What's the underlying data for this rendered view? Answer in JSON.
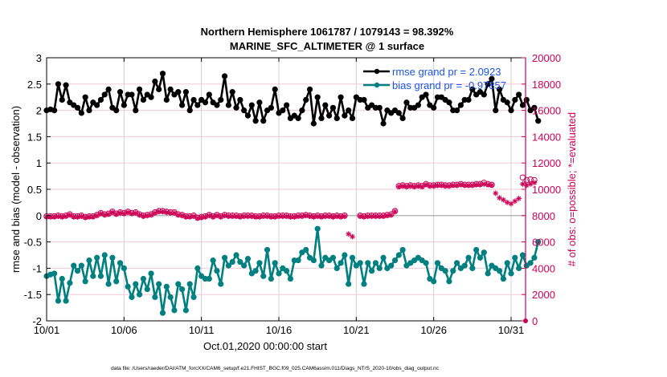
{
  "chart_data": {
    "type": "line",
    "title": "Northern Hemisphere 1061787 / 1079143 = 98.392%",
    "subtitle": "MARINE_SFC_ALTIMETER @ 1 surface",
    "xlabel": "Oct.01,2020 00:00:00 start",
    "ylabel": "rmse and bias (model - observation)",
    "y2label": "# of obs: o=possible; *=evaluated",
    "ylim": [
      -2,
      3
    ],
    "y2lim": [
      0,
      20000
    ],
    "xlim_days": [
      0,
      31.5
    ],
    "grid": true,
    "legend_position": "top-right",
    "x_tick_labels": [
      "10/01",
      "10/06",
      "10/11",
      "10/16",
      "10/21",
      "10/26",
      "10/31"
    ],
    "x_tick_days": [
      0,
      5,
      10,
      15,
      20,
      25,
      30
    ],
    "y_tick_labels": [
      "-2",
      "-1.5",
      "-1",
      "-0.5",
      "0",
      "0.5",
      "1",
      "1.5",
      "2",
      "2.5",
      "3"
    ],
    "y_ticks": [
      -2,
      -1.5,
      -1,
      -0.5,
      0,
      0.5,
      1,
      1.5,
      2,
      2.5,
      3
    ],
    "y2_tick_labels": [
      "0",
      "2000",
      "4000",
      "6000",
      "8000",
      "10000",
      "12000",
      "14000",
      "16000",
      "18000",
      "20000"
    ],
    "y2_ticks": [
      0,
      2000,
      4000,
      6000,
      8000,
      10000,
      12000,
      14000,
      16000,
      18000,
      20000
    ],
    "x_step_days": 0.25,
    "series": [
      {
        "name": "rmse grand pr = 2.0923",
        "color": "#000000",
        "axis": "left",
        "values": [
          2.0,
          2.02,
          2.0,
          2.5,
          2.2,
          2.48,
          2.15,
          2.1,
          2.05,
          1.95,
          2.25,
          2.0,
          2.15,
          2.1,
          2.2,
          2.3,
          2.4,
          2.05,
          2.0,
          2.35,
          2.1,
          2.3,
          2.3,
          2.0,
          2.4,
          2.2,
          2.3,
          2.25,
          2.55,
          2.4,
          2.7,
          2.2,
          2.4,
          2.3,
          2.35,
          2.1,
          2.35,
          2.0,
          2.2,
          2.1,
          2.2,
          2.15,
          2.3,
          2.15,
          2.1,
          2.2,
          2.65,
          2.1,
          2.35,
          2.05,
          2.2,
          2.0,
          1.9,
          2.1,
          1.8,
          2.15,
          1.8,
          2.0,
          2.05,
          2.4,
          1.95,
          2.0,
          2.1,
          1.85,
          1.9,
          1.85,
          2.0,
          2.2,
          2.4,
          1.75,
          2.25,
          1.85,
          2.1,
          1.9,
          2.05,
          1.85,
          2.25,
          1.9,
          2.0,
          1.85,
          2.25,
          2.2,
          2.2,
          2.05,
          2.1,
          2.05,
          2.05,
          1.75,
          2.0,
          1.95,
          2.0,
          1.95,
          1.85,
          2.15,
          2.05,
          2.05,
          2.1,
          2.25,
          2.3,
          2.1,
          2.05,
          2.25,
          2.25,
          2.2,
          2.15,
          2.0,
          2.0,
          2.1,
          2.2,
          2.2,
          2.4,
          2.3,
          2.35,
          2.3,
          2.5,
          2.6,
          2.0,
          2.4,
          2.2,
          2.15,
          2.0,
          2.2,
          2.3,
          2.1,
          2.2,
          2.0,
          2.05,
          1.8
        ]
      },
      {
        "name": "bias grand pr = -0.97857",
        "color": "#008080",
        "axis": "left",
        "values": [
          -1.15,
          -1.12,
          -1.1,
          -1.62,
          -1.2,
          -1.62,
          -1.28,
          -0.95,
          -1.05,
          -0.95,
          -1.25,
          -0.85,
          -1.15,
          -0.8,
          -1.15,
          -0.75,
          -1.3,
          -0.8,
          -1.25,
          -0.9,
          -1.0,
          -1.35,
          -1.55,
          -1.3,
          -1.5,
          -1.2,
          -1.4,
          -1.1,
          -1.55,
          -1.3,
          -1.85,
          -1.35,
          -1.55,
          -1.8,
          -1.3,
          -1.4,
          -1.8,
          -1.3,
          -1.55,
          -1.0,
          -1.15,
          -1.2,
          -1.2,
          -0.85,
          -1.05,
          -1.3,
          -0.8,
          -0.95,
          -0.88,
          -0.75,
          -0.88,
          -0.95,
          -0.82,
          -1.1,
          -1.05,
          -0.9,
          -1.15,
          -0.65,
          -1.2,
          -0.9,
          -1.1,
          -1.0,
          -1.05,
          -1.2,
          -0.85,
          -0.85,
          -0.7,
          -0.65,
          -0.8,
          -0.85,
          -0.25,
          -0.95,
          -0.8,
          -0.85,
          -0.8,
          -1.0,
          -0.9,
          -0.75,
          -1.3,
          -0.8,
          -0.95,
          -0.9,
          -1.3,
          -0.9,
          -1.05,
          -0.9,
          -1.0,
          -0.8,
          -1.0,
          -0.95,
          -0.85,
          -0.75,
          -0.65,
          -0.95,
          -0.9,
          -0.85,
          -0.8,
          -0.85,
          -0.9,
          -1.2,
          -1.25,
          -0.9,
          -1.0,
          -1.05,
          -1.25,
          -1.05,
          -0.9,
          -1.0,
          -0.95,
          -0.8,
          -1.0,
          -0.65,
          -0.8,
          -0.7,
          -1.1,
          -0.95,
          -1.0,
          -1.05,
          -1.2,
          -0.9,
          -1.1,
          -0.8,
          -1.0,
          -0.75,
          -0.95,
          -0.9,
          -0.8,
          -0.5
        ]
      },
      {
        "name": "obs possible (o)",
        "color": "#cc0055",
        "axis": "right",
        "marker": "circle",
        "values": [
          7950,
          7950,
          7950,
          8000,
          7950,
          8000,
          8100,
          7950,
          7950,
          8000,
          7900,
          7950,
          7950,
          8050,
          8200,
          8100,
          8150,
          8300,
          8150,
          8250,
          8200,
          8300,
          8200,
          8250,
          8100,
          8000,
          8050,
          8100,
          8250,
          8350,
          8350,
          8300,
          8250,
          8250,
          8100,
          8050,
          7950,
          7950,
          8000,
          7850,
          7900,
          7950,
          8050,
          7950,
          8050,
          7950,
          8050,
          8000,
          8000,
          8000,
          7950,
          8000,
          8000,
          8000,
          7950,
          7950,
          8000,
          8000,
          7950,
          7950,
          8000,
          8000,
          8000,
          7950,
          7950,
          8000,
          8000,
          8050,
          8000,
          7950,
          8000,
          7950,
          8000,
          8000,
          7950,
          8000,
          7950,
          8000,
          null,
          null,
          null,
          8000,
          7950,
          8000,
          8000,
          8000,
          8000,
          8000,
          8050,
          8100,
          8350,
          10250,
          10300,
          10250,
          10300,
          10250,
          10300,
          10250,
          10400,
          10300,
          10300,
          10350,
          10350,
          10300,
          10300,
          10350,
          10350,
          10400,
          10350,
          10350,
          10350,
          10400,
          10400,
          10500,
          10400,
          10350,
          null,
          null,
          null,
          null,
          null,
          null,
          null,
          10900,
          10700,
          10750,
          10700
        ]
      },
      {
        "name": "obs evaluated (*)",
        "color": "#cc0055",
        "axis": "right",
        "marker": "asterisk",
        "values": [
          7900,
          7900,
          7900,
          7950,
          7900,
          7950,
          8050,
          7900,
          7900,
          7950,
          7850,
          7900,
          7900,
          8000,
          8150,
          8050,
          8100,
          8250,
          8100,
          8200,
          8150,
          8250,
          8150,
          8200,
          8050,
          7950,
          8000,
          8050,
          8200,
          8300,
          8300,
          8250,
          8200,
          8200,
          8050,
          8000,
          7900,
          7900,
          7950,
          7800,
          7850,
          7900,
          8000,
          7900,
          8000,
          7900,
          8000,
          7950,
          7950,
          7950,
          7900,
          7950,
          7950,
          7950,
          7900,
          7900,
          7950,
          7950,
          7900,
          7900,
          7950,
          7950,
          7950,
          7900,
          7900,
          7950,
          7950,
          8000,
          7950,
          7900,
          7950,
          7900,
          7950,
          7950,
          7900,
          7950,
          7900,
          7950,
          6600,
          6400,
          null,
          7950,
          7900,
          7950,
          7950,
          7950,
          7950,
          7950,
          8000,
          8050,
          8300,
          10200,
          10250,
          10200,
          10250,
          10200,
          10250,
          10200,
          10350,
          10250,
          10250,
          10300,
          10300,
          10250,
          10250,
          10300,
          10300,
          10350,
          10300,
          10300,
          10300,
          10350,
          10350,
          10400,
          10350,
          10300,
          9700,
          9350,
          9200,
          9000,
          8900,
          9100,
          9300,
          10400,
          10300,
          10400,
          10500
        ]
      }
    ],
    "annotations": [
      "data file: /Users/raeder/DAI/ATM_forcXX/CAM6_setup/f.e21.FHIST_BGC.f09_025.CAM6assim.011/Diags_NTrS_2020-10/obs_diag_output.nc"
    ]
  }
}
